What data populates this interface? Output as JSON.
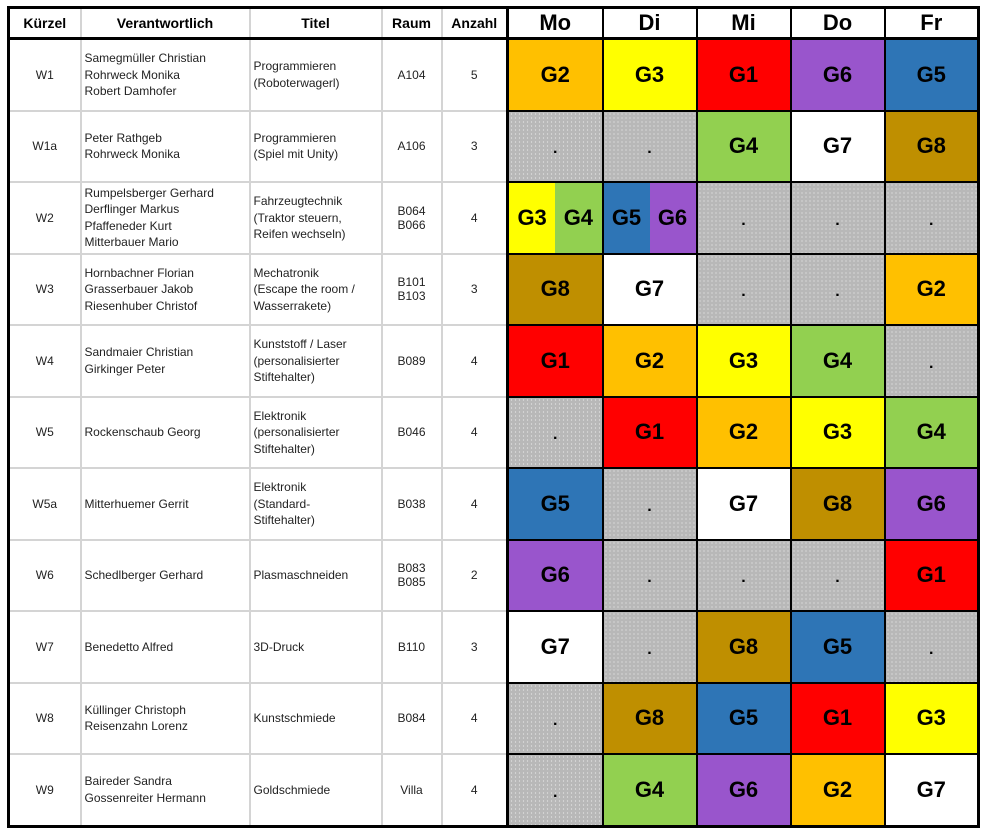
{
  "headers": {
    "kuerzel": "Kürzel",
    "verantwortlich": "Verantwortlich",
    "titel": "Titel",
    "raum": "Raum",
    "anzahl": "Anzahl",
    "days": [
      "Mo",
      "Di",
      "Mi",
      "Do",
      "Fr"
    ]
  },
  "empty_mark": ".",
  "group_colors": {
    "G1": "#FF0000",
    "G2": "#FFC000",
    "G3": "#FFFF00",
    "G4": "#92D050",
    "G5": "#2E75B6",
    "G6": "#9955CC",
    "G7": "#FFFFFF",
    "G8": "#BF8F00"
  },
  "rows": [
    {
      "kuerzel": "W1",
      "verantwortlich": [
        "Samegmüller Christian",
        "Rohrweck Monika",
        "Robert Damhofer"
      ],
      "titel": [
        "Programmieren",
        "(Roboterwagerl)"
      ],
      "raum": [
        "A104"
      ],
      "anzahl": "5",
      "days": [
        [
          "G2"
        ],
        [
          "G3"
        ],
        [
          "G1"
        ],
        [
          "G6"
        ],
        [
          "G5"
        ]
      ]
    },
    {
      "kuerzel": "W1a",
      "verantwortlich": [
        "Peter Rathgeb",
        "Rohrweck Monika"
      ],
      "titel": [
        "Programmieren",
        "(Spiel mit Unity)"
      ],
      "raum": [
        "A106"
      ],
      "anzahl": "3",
      "days": [
        [],
        [],
        [
          "G4"
        ],
        [
          "G7"
        ],
        [
          "G8"
        ]
      ]
    },
    {
      "kuerzel": "W2",
      "verantwortlich": [
        "Rumpelsberger Gerhard",
        "Derflinger Markus",
        "Pfaffeneder Kurt",
        "Mitterbauer Mario"
      ],
      "titel": [
        "Fahrzeugtechnik",
        "(Traktor steuern,",
        "Reifen wechseln)"
      ],
      "raum": [
        "B064",
        "B066"
      ],
      "anzahl": "4",
      "days": [
        [
          "G3",
          "G4"
        ],
        [
          "G5",
          "G6"
        ],
        [],
        [],
        []
      ]
    },
    {
      "kuerzel": "W3",
      "verantwortlich": [
        "Hornbachner Florian",
        "Grasserbauer Jakob",
        "Riesenhuber Christof"
      ],
      "titel": [
        "Mechatronik",
        "(Escape the room /",
        "Wasserrakete)"
      ],
      "raum": [
        "B101",
        "B103"
      ],
      "anzahl": "3",
      "days": [
        [
          "G8"
        ],
        [
          "G7"
        ],
        [],
        [],
        [
          "G2"
        ]
      ]
    },
    {
      "kuerzel": "W4",
      "verantwortlich": [
        "Sandmaier Christian",
        "Girkinger Peter"
      ],
      "titel": [
        "Kunststoff / Laser",
        "(personalisierter",
        "Stiftehalter)"
      ],
      "raum": [
        "B089"
      ],
      "anzahl": "4",
      "days": [
        [
          "G1"
        ],
        [
          "G2"
        ],
        [
          "G3"
        ],
        [
          "G4"
        ],
        []
      ]
    },
    {
      "kuerzel": "W5",
      "verantwortlich": [
        "Rockenschaub Georg"
      ],
      "titel": [
        "Elektronik",
        "(personalisierter",
        "Stiftehalter)"
      ],
      "raum": [
        "B046"
      ],
      "anzahl": "4",
      "days": [
        [],
        [
          "G1"
        ],
        [
          "G2"
        ],
        [
          "G3"
        ],
        [
          "G4"
        ]
      ]
    },
    {
      "kuerzel": "W5a",
      "verantwortlich": [
        "Mitterhuemer Gerrit"
      ],
      "titel": [
        "Elektronik",
        "(Standard-",
        "Stiftehalter)"
      ],
      "raum": [
        "B038"
      ],
      "anzahl": "4",
      "days": [
        [
          "G5"
        ],
        [],
        [
          "G7"
        ],
        [
          "G8"
        ],
        [
          "G6"
        ]
      ]
    },
    {
      "kuerzel": "W6",
      "verantwortlich": [
        "Schedlberger Gerhard"
      ],
      "titel": [
        "Plasmaschneiden"
      ],
      "raum": [
        "B083",
        "B085"
      ],
      "anzahl": "2",
      "days": [
        [
          "G6"
        ],
        [],
        [],
        [],
        [
          "G1"
        ]
      ]
    },
    {
      "kuerzel": "W7",
      "verantwortlich": [
        "Benedetto Alfred"
      ],
      "titel": [
        "3D-Druck"
      ],
      "raum": [
        "B110"
      ],
      "anzahl": "3",
      "days": [
        [
          "G7"
        ],
        [],
        [
          "G8"
        ],
        [
          "G5"
        ],
        []
      ]
    },
    {
      "kuerzel": "W8",
      "verantwortlich": [
        "Küllinger Christoph",
        "Reisenzahn Lorenz"
      ],
      "titel": [
        "Kunstschmiede"
      ],
      "raum": [
        "B084"
      ],
      "anzahl": "4",
      "days": [
        [],
        [
          "G8"
        ],
        [
          "G5"
        ],
        [
          "G1"
        ],
        [
          "G3"
        ]
      ]
    },
    {
      "kuerzel": "W9",
      "verantwortlich": [
        "Baireder Sandra",
        "Gossenreiter Hermann"
      ],
      "titel": [
        "Goldschmiede"
      ],
      "raum": [
        "Villa"
      ],
      "anzahl": "4",
      "days": [
        [],
        [
          "G4"
        ],
        [
          "G6"
        ],
        [
          "G2"
        ],
        [
          "G7"
        ]
      ]
    }
  ]
}
